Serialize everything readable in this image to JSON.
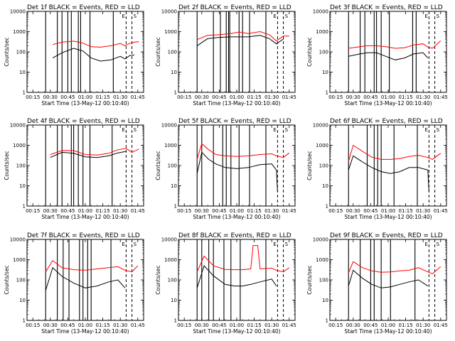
{
  "figure": {
    "panels": [
      {
        "title": "Det 1f BLACK = Events, RED = LLD"
      },
      {
        "title": "Det 2f BLACK = Events, RED = LLD"
      },
      {
        "title": "Det 3f BLACK = Events, RED = LLD"
      },
      {
        "title": "Det 4f BLACK = Events, RED = LLD"
      },
      {
        "title": "Det 5f BLACK = Events, RED = LLD"
      },
      {
        "title": "Det 6f BLACK = Events, RED = LLD"
      },
      {
        "title": "Det 7f BLACK = Events, RED = LLD"
      },
      {
        "title": "Det 8f BLACK = Events, RED = LLD"
      },
      {
        "title": "Det 9f BLACK = Events, RED = LLD"
      }
    ],
    "xlabel": "Start Time (13-May-12 00:10:40)",
    "ylabel": "Counts/sec",
    "xticks": [
      "00:15",
      "00:30",
      "00:45",
      "01:00",
      "01:15",
      "01:30",
      "01:45"
    ],
    "yticks": [
      "1",
      "10",
      "100",
      "1000",
      "10000"
    ],
    "annotation_marks": [
      "E",
      "S"
    ]
  },
  "chart_data": {
    "type": "line",
    "y_scale": "log",
    "ylim": [
      1,
      10000
    ],
    "xlim_minutes_after_start": [
      0,
      100
    ],
    "x_unit": "minutes after 13-May-12 00:10:40",
    "series_colors": {
      "Events": "#000000",
      "LLD": "#ff0000"
    },
    "solid_markers": [
      [
        16,
        26,
        30,
        35,
        38,
        44,
        46,
        54,
        74
      ],
      [
        16,
        30,
        36,
        41,
        43,
        44,
        52,
        55,
        61,
        75
      ],
      [
        16,
        26,
        30,
        38,
        40,
        44,
        51,
        71,
        74
      ],
      [
        16,
        26,
        30,
        38,
        40,
        44,
        48,
        54,
        73
      ],
      [
        16,
        20,
        30,
        38,
        41,
        45,
        52,
        61,
        75
      ],
      [
        16,
        32,
        38,
        41,
        44,
        55,
        75
      ],
      [
        16,
        26,
        31,
        36,
        45,
        48,
        52,
        55,
        72
      ],
      [
        16,
        20,
        26,
        30,
        39,
        45,
        53,
        75
      ],
      [
        16,
        26,
        35,
        38,
        44,
        52,
        73
      ]
    ],
    "dashed_markers": [
      85,
      90
    ],
    "series": [
      {
        "name": "LLD",
        "panel": 1,
        "points": [
          [
            22,
            230
          ],
          [
            30,
            300
          ],
          [
            40,
            340
          ],
          [
            48,
            270
          ],
          [
            55,
            180
          ],
          [
            63,
            170
          ],
          [
            72,
            200
          ],
          [
            80,
            260
          ],
          [
            84,
            200
          ],
          [
            88,
            260
          ],
          [
            92,
            300
          ],
          [
            96,
            320
          ]
        ]
      },
      {
        "name": "Events",
        "panel": 1,
        "points": [
          [
            22,
            50
          ],
          [
            30,
            90
          ],
          [
            40,
            150
          ],
          [
            48,
            110
          ],
          [
            55,
            50
          ],
          [
            63,
            35
          ],
          [
            72,
            40
          ],
          [
            80,
            60
          ],
          [
            84,
            45
          ],
          [
            88,
            65
          ],
          [
            92,
            70
          ]
        ]
      },
      {
        "name": "LLD",
        "panel": 2,
        "points": [
          [
            16,
            400
          ],
          [
            25,
            650
          ],
          [
            35,
            700
          ],
          [
            45,
            800
          ],
          [
            52,
            950
          ],
          [
            60,
            800
          ],
          [
            70,
            1000
          ],
          [
            78,
            700
          ],
          [
            84,
            350
          ],
          [
            90,
            600
          ],
          [
            95,
            600
          ]
        ]
      },
      {
        "name": "Events",
        "panel": 2,
        "points": [
          [
            16,
            200
          ],
          [
            25,
            450
          ],
          [
            35,
            520
          ],
          [
            45,
            550
          ],
          [
            52,
            550
          ],
          [
            60,
            550
          ],
          [
            70,
            650
          ],
          [
            78,
            450
          ],
          [
            84,
            250
          ],
          [
            90,
            430
          ]
        ]
      },
      {
        "name": "LLD",
        "panel": 3,
        "points": [
          [
            16,
            150
          ],
          [
            26,
            180
          ],
          [
            32,
            200
          ],
          [
            40,
            200
          ],
          [
            48,
            180
          ],
          [
            56,
            150
          ],
          [
            64,
            160
          ],
          [
            72,
            220
          ],
          [
            80,
            250
          ],
          [
            84,
            170
          ],
          [
            88,
            150
          ],
          [
            95,
            350
          ]
        ]
      },
      {
        "name": "Events",
        "panel": 3,
        "points": [
          [
            16,
            60
          ],
          [
            26,
            80
          ],
          [
            32,
            90
          ],
          [
            40,
            90
          ],
          [
            48,
            60
          ],
          [
            56,
            40
          ],
          [
            64,
            50
          ],
          [
            72,
            80
          ],
          [
            80,
            90
          ],
          [
            84,
            50
          ]
        ]
      },
      {
        "name": "LLD",
        "panel": 4,
        "points": [
          [
            20,
            350
          ],
          [
            30,
            550
          ],
          [
            40,
            550
          ],
          [
            50,
            350
          ],
          [
            60,
            330
          ],
          [
            70,
            400
          ],
          [
            78,
            600
          ],
          [
            85,
            700
          ],
          [
            90,
            450
          ],
          [
            96,
            650
          ]
        ]
      },
      {
        "name": "Events",
        "panel": 4,
        "points": [
          [
            20,
            250
          ],
          [
            30,
            450
          ],
          [
            40,
            400
          ],
          [
            50,
            270
          ],
          [
            60,
            250
          ],
          [
            70,
            300
          ],
          [
            78,
            420
          ],
          [
            85,
            500
          ]
        ]
      },
      {
        "name": "LLD",
        "panel": 5,
        "points": [
          [
            16,
            200
          ],
          [
            20,
            1200
          ],
          [
            26,
            600
          ],
          [
            32,
            350
          ],
          [
            40,
            300
          ],
          [
            50,
            280
          ],
          [
            60,
            300
          ],
          [
            70,
            350
          ],
          [
            80,
            380
          ],
          [
            84,
            300
          ],
          [
            90,
            250
          ],
          [
            95,
            420
          ]
        ]
      },
      {
        "name": "Events",
        "panel": 5,
        "points": [
          [
            16,
            40
          ],
          [
            20,
            450
          ],
          [
            26,
            200
          ],
          [
            32,
            120
          ],
          [
            40,
            80
          ],
          [
            50,
            70
          ],
          [
            60,
            80
          ],
          [
            70,
            110
          ],
          [
            80,
            120
          ],
          [
            84,
            60
          ],
          [
            85,
            5
          ]
        ]
      },
      {
        "name": "LLD",
        "panel": 6,
        "points": [
          [
            16,
            160
          ],
          [
            20,
            1000
          ],
          [
            28,
            500
          ],
          [
            36,
            260
          ],
          [
            44,
            200
          ],
          [
            52,
            200
          ],
          [
            60,
            220
          ],
          [
            68,
            280
          ],
          [
            76,
            320
          ],
          [
            84,
            250
          ],
          [
            88,
            200
          ],
          [
            95,
            400
          ]
        ]
      },
      {
        "name": "Events",
        "panel": 6,
        "points": [
          [
            16,
            60
          ],
          [
            20,
            300
          ],
          [
            28,
            150
          ],
          [
            36,
            80
          ],
          [
            44,
            50
          ],
          [
            52,
            40
          ],
          [
            60,
            50
          ],
          [
            68,
            80
          ],
          [
            76,
            80
          ],
          [
            84,
            60
          ],
          [
            85,
            5
          ]
        ]
      },
      {
        "name": "LLD",
        "panel": 7,
        "points": [
          [
            16,
            250
          ],
          [
            22,
            900
          ],
          [
            30,
            400
          ],
          [
            40,
            320
          ],
          [
            50,
            300
          ],
          [
            60,
            350
          ],
          [
            70,
            400
          ],
          [
            78,
            450
          ],
          [
            84,
            300
          ],
          [
            90,
            250
          ],
          [
            95,
            500
          ]
        ]
      },
      {
        "name": "Events",
        "panel": 7,
        "points": [
          [
            16,
            30
          ],
          [
            22,
            400
          ],
          [
            30,
            150
          ],
          [
            40,
            70
          ],
          [
            50,
            40
          ],
          [
            60,
            50
          ],
          [
            70,
            80
          ],
          [
            78,
            100
          ],
          [
            84,
            40
          ]
        ]
      },
      {
        "name": "LLD",
        "panel": 8,
        "points": [
          [
            16,
            250
          ],
          [
            22,
            1500
          ],
          [
            30,
            500
          ],
          [
            40,
            330
          ],
          [
            48,
            320
          ],
          [
            55,
            320
          ],
          [
            62,
            350
          ],
          [
            64,
            5000
          ],
          [
            68,
            5000
          ],
          [
            70,
            350
          ],
          [
            80,
            380
          ],
          [
            84,
            300
          ],
          [
            90,
            250
          ],
          [
            95,
            400
          ]
        ]
      },
      {
        "name": "Events",
        "panel": 8,
        "points": [
          [
            16,
            40
          ],
          [
            22,
            500
          ],
          [
            30,
            160
          ],
          [
            40,
            60
          ],
          [
            48,
            50
          ],
          [
            55,
            50
          ],
          [
            62,
            60
          ],
          [
            70,
            80
          ],
          [
            80,
            110
          ],
          [
            84,
            50
          ]
        ]
      },
      {
        "name": "LLD",
        "panel": 9,
        "points": [
          [
            16,
            220
          ],
          [
            20,
            800
          ],
          [
            28,
            400
          ],
          [
            36,
            280
          ],
          [
            44,
            240
          ],
          [
            52,
            250
          ],
          [
            60,
            280
          ],
          [
            68,
            300
          ],
          [
            76,
            400
          ],
          [
            84,
            250
          ],
          [
            88,
            200
          ],
          [
            95,
            450
          ]
        ]
      },
      {
        "name": "Events",
        "panel": 9,
        "points": [
          [
            16,
            50
          ],
          [
            20,
            300
          ],
          [
            28,
            120
          ],
          [
            36,
            60
          ],
          [
            44,
            40
          ],
          [
            52,
            45
          ],
          [
            60,
            60
          ],
          [
            68,
            80
          ],
          [
            76,
            100
          ],
          [
            84,
            50
          ]
        ]
      }
    ]
  }
}
